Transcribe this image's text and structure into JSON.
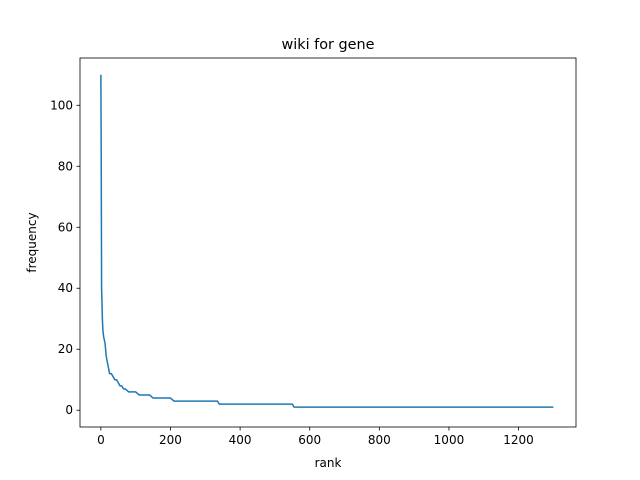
{
  "chart_data": {
    "type": "line",
    "title": "wiki  for gene",
    "xlabel": "rank",
    "ylabel": "frequency",
    "xlim": [
      -60,
      1365
    ],
    "ylim": [
      -5.5,
      115.5
    ],
    "xticks": [
      0,
      200,
      400,
      600,
      800,
      1000,
      1200
    ],
    "yticks": [
      0,
      20,
      40,
      60,
      80,
      100
    ],
    "grid": false,
    "color": "#1f77b4",
    "series": [
      {
        "x": [
          0,
          1,
          2,
          3,
          4,
          5,
          6,
          8,
          10,
          12,
          15,
          18,
          20,
          25,
          30,
          35,
          40,
          45,
          50,
          55,
          60,
          65,
          70,
          80,
          90,
          100,
          110,
          120,
          130,
          140,
          150,
          160,
          180,
          200,
          210,
          250,
          300,
          335,
          340,
          400,
          450,
          500,
          550,
          555,
          600,
          800,
          1000,
          1200,
          1300
        ],
        "y": [
          110,
          82,
          40,
          36,
          31,
          28,
          26,
          24,
          23,
          22,
          18,
          16,
          15,
          12,
          12,
          11,
          10,
          10,
          9,
          8,
          8,
          7,
          7,
          6,
          6,
          6,
          5,
          5,
          5,
          5,
          4,
          4,
          4,
          4,
          3,
          3,
          3,
          3,
          2,
          2,
          2,
          2,
          2,
          1,
          1,
          1,
          1,
          1,
          1
        ]
      }
    ]
  }
}
